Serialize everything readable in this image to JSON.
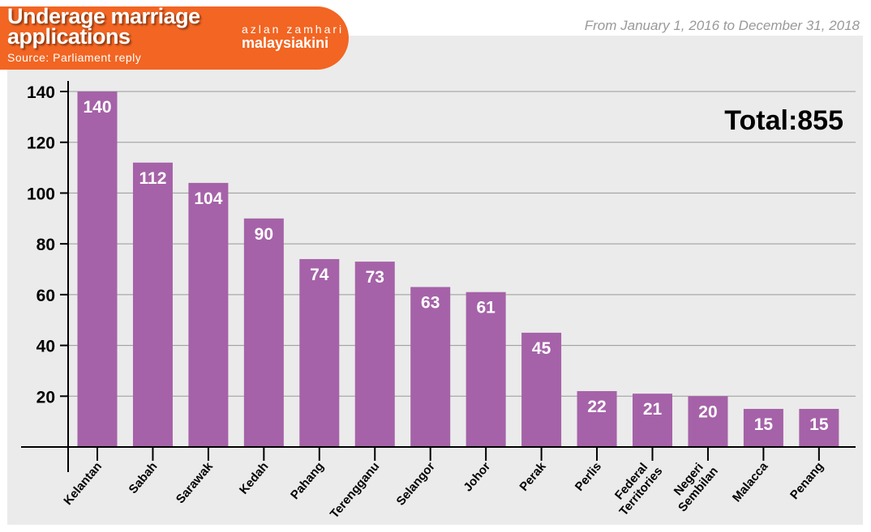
{
  "header": {
    "title": "Underage marriage applications",
    "source": "Source: Parliament reply",
    "brand_top": "azlan zamhari",
    "brand_bottom": "malaysiakini",
    "date_range": "From January 1, 2016 to December 31, 2018"
  },
  "chart_data": {
    "type": "bar",
    "title": "Underage marriage applications",
    "xlabel": "",
    "ylabel": "",
    "ylim": [
      0,
      140
    ],
    "yticks": [
      20,
      40,
      60,
      80,
      100,
      120,
      140
    ],
    "categories": [
      "Kelantan",
      "Sabah",
      "Sarawak",
      "Kedah",
      "Pahang",
      "Terengganu",
      "Selangor",
      "Johor",
      "Perak",
      "Perlis",
      "Federal Territories",
      "Negeri Sembilan",
      "Malacca",
      "Penang"
    ],
    "values": [
      140,
      112,
      104,
      90,
      74,
      73,
      63,
      61,
      45,
      22,
      21,
      20,
      15,
      15
    ],
    "annotation": "Total:855",
    "grid": true,
    "bar_color": "#a562a8",
    "accent": "#f26522"
  }
}
